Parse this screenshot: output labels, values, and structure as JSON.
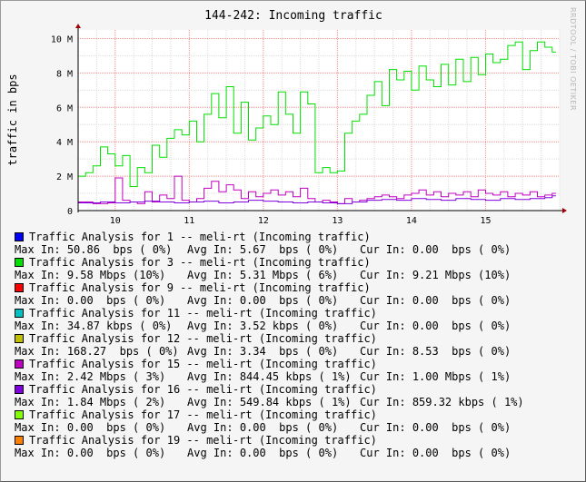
{
  "credit": "RRDTOOL / TOBI OETIKER",
  "chart_data": {
    "type": "line",
    "title": "144-242: Incoming traffic",
    "ylabel": "traffic in bps",
    "xlabel": "",
    "x_ticks": [
      "10",
      "11",
      "12",
      "13",
      "14",
      "15"
    ],
    "y_ticks": [
      "0",
      "2 M",
      "4 M",
      "6 M",
      "8 M",
      "10 M"
    ],
    "ylim": [
      0,
      10500000
    ],
    "xlim": [
      9.5,
      16.0
    ],
    "grid": true,
    "series": [
      {
        "name": "Traffic Analysis for 3 -- meli-rt (Incoming traffic)",
        "color": "#00e000",
        "x": [
          9.5,
          9.6,
          9.7,
          9.8,
          9.9,
          10.0,
          10.1,
          10.2,
          10.3,
          10.4,
          10.5,
          10.6,
          10.7,
          10.8,
          10.9,
          11.0,
          11.1,
          11.2,
          11.3,
          11.4,
          11.5,
          11.6,
          11.7,
          11.8,
          11.9,
          12.0,
          12.1,
          12.2,
          12.3,
          12.4,
          12.5,
          12.6,
          12.7,
          12.8,
          12.9,
          13.0,
          13.1,
          13.2,
          13.3,
          13.4,
          13.5,
          13.6,
          13.7,
          13.8,
          13.9,
          14.0,
          14.1,
          14.2,
          14.3,
          14.4,
          14.5,
          14.6,
          14.7,
          14.8,
          14.9,
          15.0,
          15.1,
          15.2,
          15.3,
          15.4,
          15.5,
          15.6,
          15.7,
          15.8,
          15.9
        ],
        "y": [
          2000000,
          2200000,
          2600000,
          3700000,
          3300000,
          2600000,
          3200000,
          1400000,
          2500000,
          2200000,
          3800000,
          3100000,
          4200000,
          4700000,
          4400000,
          5200000,
          4000000,
          5600000,
          6800000,
          5400000,
          7200000,
          4500000,
          6300000,
          4100000,
          4800000,
          5500000,
          5000000,
          6900000,
          5600000,
          4500000,
          6900000,
          6200000,
          2200000,
          2500000,
          2200000,
          2300000,
          4500000,
          5200000,
          5600000,
          6700000,
          7500000,
          6100000,
          8200000,
          7600000,
          8100000,
          7000000,
          8400000,
          7600000,
          7200000,
          8500000,
          7300000,
          8800000,
          7500000,
          8900000,
          7900000,
          9100000,
          8600000,
          8800000,
          9600000,
          9800000,
          8200000,
          9300000,
          9800000,
          9500000,
          9210000
        ]
      },
      {
        "name": "Traffic Analysis for 15 -- meli-rt (Incoming traffic)",
        "color": "#c000c0",
        "x": [
          9.5,
          9.7,
          9.9,
          10.0,
          10.1,
          10.2,
          10.3,
          10.4,
          10.5,
          10.6,
          10.7,
          10.8,
          10.9,
          11.0,
          11.1,
          11.2,
          11.3,
          11.4,
          11.5,
          11.6,
          11.7,
          11.8,
          11.9,
          12.0,
          12.1,
          12.2,
          12.3,
          12.4,
          12.5,
          12.6,
          12.7,
          12.8,
          12.9,
          13.0,
          13.1,
          13.2,
          13.3,
          13.4,
          13.5,
          13.6,
          13.7,
          13.8,
          13.9,
          14.0,
          14.1,
          14.2,
          14.3,
          14.4,
          14.5,
          14.6,
          14.7,
          14.8,
          14.9,
          15.0,
          15.1,
          15.2,
          15.3,
          15.4,
          15.5,
          15.6,
          15.7,
          15.8,
          15.9
        ],
        "y": [
          500000,
          400000,
          450000,
          1900000,
          600000,
          500000,
          400000,
          1100000,
          500000,
          900000,
          700000,
          2000000,
          600000,
          500000,
          700000,
          1300000,
          1700000,
          1100000,
          1500000,
          1200000,
          700000,
          1100000,
          800000,
          1000000,
          1200000,
          900000,
          1100000,
          800000,
          1300000,
          700000,
          500000,
          600000,
          500000,
          400000,
          700000,
          500000,
          600000,
          700000,
          800000,
          900000,
          800000,
          700000,
          900000,
          1000000,
          1200000,
          900000,
          1100000,
          800000,
          1000000,
          900000,
          1100000,
          800000,
          1200000,
          1000000,
          900000,
          1100000,
          800000,
          1000000,
          900000,
          1100000,
          800000,
          900000,
          1000000
        ]
      },
      {
        "name": "Traffic Analysis for 16 -- meli-rt (Incoming traffic)",
        "color": "#8000e0",
        "x": [
          9.5,
          9.8,
          10.0,
          10.2,
          10.4,
          10.6,
          10.8,
          11.0,
          11.2,
          11.4,
          11.6,
          11.8,
          12.0,
          12.2,
          12.4,
          12.6,
          12.8,
          13.0,
          13.2,
          13.4,
          13.6,
          13.8,
          14.0,
          14.2,
          14.4,
          14.6,
          14.8,
          15.0,
          15.2,
          15.4,
          15.6,
          15.8,
          15.9
        ],
        "y": [
          450000,
          500000,
          450000,
          500000,
          550000,
          500000,
          450000,
          500000,
          550000,
          450000,
          500000,
          600000,
          550000,
          500000,
          450000,
          500000,
          450000,
          400000,
          500000,
          600000,
          650000,
          600000,
          700000,
          650000,
          600000,
          700000,
          650000,
          600000,
          700000,
          650000,
          700000,
          750000,
          859000
        ]
      }
    ],
    "legend": [
      {
        "color": "#0000ff",
        "label": "Traffic Analysis for 1 -- meli-rt (Incoming traffic)",
        "max": "50.86  bps ( 0%)",
        "avg": "5.67  bps ( 0%)",
        "cur": "0.00  bps ( 0%)"
      },
      {
        "color": "#00e000",
        "label": "Traffic Analysis for 3 -- meli-rt (Incoming traffic)",
        "max": "9.58 Mbps (10%)",
        "avg": "5.31 Mbps ( 6%)",
        "cur": "9.21 Mbps (10%)"
      },
      {
        "color": "#ff0000",
        "label": "Traffic Analysis for 9 -- meli-rt (Incoming traffic)",
        "max": "0.00  bps ( 0%)",
        "avg": "0.00  bps ( 0%)",
        "cur": "0.00  bps ( 0%)"
      },
      {
        "color": "#00c0c0",
        "label": "Traffic Analysis for 11 -- meli-rt (Incoming traffic)",
        "max": "34.87 kbps ( 0%)",
        "avg": "3.52 kbps ( 0%)",
        "cur": "0.00  bps ( 0%)"
      },
      {
        "color": "#c0c000",
        "label": "Traffic Analysis for 12 -- meli-rt (Incoming traffic)",
        "max": "168.27  bps ( 0%)",
        "avg": "3.34  bps ( 0%)",
        "cur": "8.53  bps ( 0%)"
      },
      {
        "color": "#c000c0",
        "label": "Traffic Analysis for 15 -- meli-rt (Incoming traffic)",
        "max": "2.42 Mbps ( 3%)",
        "avg": "844.45 kbps ( 1%)",
        "cur": "1.00 Mbps ( 1%)"
      },
      {
        "color": "#8000e0",
        "label": "Traffic Analysis for 16 -- meli-rt (Incoming traffic)",
        "max": "1.84 Mbps ( 2%)",
        "avg": "549.84 kbps ( 1%)",
        "cur": "859.32 kbps ( 1%)"
      },
      {
        "color": "#80ff00",
        "label": "Traffic Analysis for 17 -- meli-rt (Incoming traffic)",
        "max": "0.00  bps ( 0%)",
        "avg": "0.00  bps ( 0%)",
        "cur": "0.00  bps ( 0%)"
      },
      {
        "color": "#ff8000",
        "label": "Traffic Analysis for 19 -- meli-rt (Incoming traffic)",
        "max": "0.00  bps ( 0%)",
        "avg": "0.00  bps ( 0%)",
        "cur": "0.00  bps ( 0%)"
      }
    ],
    "stat_labels": {
      "max": "Max In:",
      "avg": "Avg In:",
      "cur": "Cur In:"
    }
  }
}
